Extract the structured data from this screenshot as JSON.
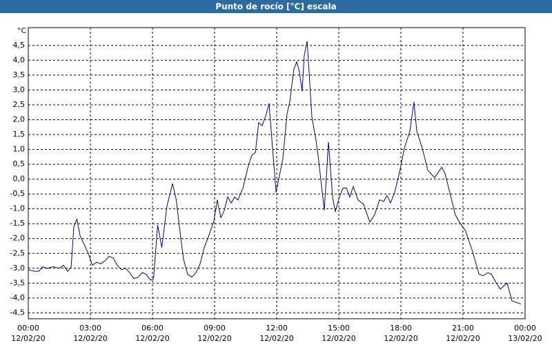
{
  "chart_data": {
    "type": "line",
    "title": "Punto de rocío [°C] escala",
    "y_unit": "°C",
    "x": [
      0,
      0.3,
      0.5,
      0.7,
      0.9,
      1.2,
      1.5,
      1.7,
      1.9,
      2.07,
      2.2,
      2.35,
      2.5,
      2.7,
      2.9,
      3.1,
      3.3,
      3.5,
      3.7,
      3.9,
      4.1,
      4.3,
      4.5,
      4.7,
      4.9,
      5.1,
      5.3,
      5.5,
      5.7,
      5.9,
      6.05,
      6.25,
      6.45,
      6.7,
      6.97,
      7.15,
      7.3,
      7.5,
      7.7,
      7.9,
      8.1,
      8.3,
      8.5,
      8.7,
      8.97,
      9.13,
      9.3,
      9.47,
      9.63,
      9.8,
      9.97,
      10.13,
      10.37,
      10.63,
      10.8,
      10.97,
      11.13,
      11.3,
      11.5,
      11.63,
      11.8,
      11.97,
      12.3,
      12.5,
      12.63,
      12.83,
      12.97,
      13.1,
      13.23,
      13.33,
      13.47,
      13.7,
      13.9,
      14.0,
      14.3,
      14.5,
      14.7,
      14.83,
      15.03,
      15.2,
      15.37,
      15.53,
      15.7,
      15.93,
      16.2,
      16.5,
      16.73,
      16.97,
      17.17,
      17.33,
      17.5,
      17.7,
      17.97,
      18.17,
      18.43,
      18.63,
      18.77,
      19.03,
      19.3,
      19.63,
      19.97,
      20.13,
      20.63,
      20.83,
      21.13,
      21.47,
      21.77,
      21.97,
      22.2,
      22.37,
      22.57,
      22.8,
      23.13,
      23.37,
      23.57,
      23.8
    ],
    "series": [
      {
        "color": "#00008b",
        "values": [
          -3.05,
          -3.1,
          -3.1,
          -2.95,
          -3.0,
          -2.95,
          -3.0,
          -2.9,
          -3.1,
          -2.95,
          -1.6,
          -1.35,
          -1.9,
          -2.2,
          -2.5,
          -2.9,
          -2.8,
          -2.85,
          -2.75,
          -2.6,
          -2.65,
          -2.9,
          -3.05,
          -3.0,
          -3.15,
          -3.35,
          -3.3,
          -3.15,
          -3.2,
          -3.4,
          -3.35,
          -1.55,
          -2.3,
          -0.9,
          -0.15,
          -0.7,
          -1.6,
          -2.7,
          -3.2,
          -3.3,
          -3.15,
          -2.85,
          -2.3,
          -1.95,
          -1.4,
          -0.7,
          -1.3,
          -1.05,
          -0.6,
          -0.8,
          -0.6,
          -0.7,
          -0.3,
          0.45,
          0.8,
          0.9,
          1.9,
          1.8,
          2.2,
          2.55,
          1.05,
          -0.45,
          0.7,
          2.2,
          2.6,
          3.7,
          3.95,
          3.6,
          2.95,
          4.15,
          4.65,
          2.1,
          1.3,
          0.8,
          -1.05,
          1.25,
          -0.6,
          -1.1,
          -0.6,
          -0.3,
          -0.3,
          -0.6,
          -0.25,
          -0.7,
          -0.85,
          -1.45,
          -1.2,
          -0.7,
          -0.75,
          -0.55,
          -0.8,
          -0.45,
          0.35,
          1.05,
          1.6,
          2.6,
          1.6,
          1.05,
          0.3,
          0.05,
          0.4,
          0.2,
          -1.2,
          -1.45,
          -1.75,
          -2.45,
          -3.2,
          -3.25,
          -3.15,
          -3.2,
          -3.45,
          -3.7,
          -3.5,
          -4.1,
          -4.15,
          -4.2
        ]
      }
    ],
    "xlim": [
      0,
      24
    ],
    "xticks": [
      {
        "value": 0,
        "label": "00:00",
        "date": "12/02/20"
      },
      {
        "value": 3,
        "label": "03:00",
        "date": "12/02/20"
      },
      {
        "value": 6,
        "label": "06:00",
        "date": "12/02/20"
      },
      {
        "value": 9,
        "label": "09:00",
        "date": "12/02/20"
      },
      {
        "value": 12,
        "label": "12:00",
        "date": "12/02/20"
      },
      {
        "value": 15,
        "label": "15:00",
        "date": "12/02/20"
      },
      {
        "value": 18,
        "label": "18:00",
        "date": "12/02/20"
      },
      {
        "value": 21,
        "label": "21:00",
        "date": "12/02/20"
      },
      {
        "value": 24,
        "label": "00:00",
        "date": "13/02/20"
      }
    ],
    "ylim": [
      -4.7,
      5.1
    ],
    "yticks": [
      {
        "value": -4.5,
        "label": "-4,5"
      },
      {
        "value": -4,
        "label": "-4,0"
      },
      {
        "value": -3.5,
        "label": "-3,5"
      },
      {
        "value": -3,
        "label": "-3,0"
      },
      {
        "value": -2.5,
        "label": "-2,5"
      },
      {
        "value": -2,
        "label": "-2,0"
      },
      {
        "value": -1.5,
        "label": "-1,5"
      },
      {
        "value": -1,
        "label": "-1,0"
      },
      {
        "value": -0.5,
        "label": "-0,5"
      },
      {
        "value": 0,
        "label": "0,0"
      },
      {
        "value": 0.5,
        "label": "0,5"
      },
      {
        "value": 1,
        "label": "1,0"
      },
      {
        "value": 1.5,
        "label": "1,5"
      },
      {
        "value": 2,
        "label": "2,0"
      },
      {
        "value": 2.5,
        "label": "2,5"
      },
      {
        "value": 3,
        "label": "3,0"
      },
      {
        "value": 3.5,
        "label": "3,5"
      },
      {
        "value": 4,
        "label": "4,0"
      },
      {
        "value": 4.5,
        "label": "4,5"
      }
    ],
    "grid": true
  }
}
